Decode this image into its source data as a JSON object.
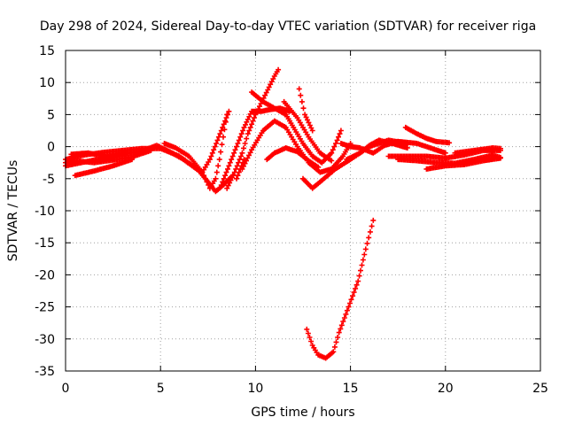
{
  "chart_data": {
    "type": "scatter",
    "title": "Day 298 of 2024, Sidereal Day-to-day VTEC variation (SDTVAR) for receiver riga",
    "xlabel": "GPS time / hours",
    "ylabel": "SDTVAR / TECUs",
    "xlim": [
      0,
      25
    ],
    "ylim": [
      -35,
      15
    ],
    "xticks": [
      0,
      5,
      10,
      15,
      20,
      25
    ],
    "yticks": [
      15,
      10,
      5,
      0,
      -5,
      -10,
      -15,
      -20,
      -25,
      -30,
      -35
    ],
    "grid": true,
    "marker": "plus",
    "color": "#ff0000",
    "series": [
      {
        "name": "track-1",
        "points": [
          [
            0.0,
            -2.0
          ],
          [
            1.0,
            -1.3
          ],
          [
            2.0,
            -0.9
          ],
          [
            3.0,
            -0.6
          ],
          [
            4.0,
            -0.3
          ],
          [
            5.0,
            -0.3
          ],
          [
            6.0,
            -1.5
          ],
          [
            7.0,
            -3.7
          ],
          [
            7.5,
            -5.5
          ],
          [
            7.9,
            -7.0
          ],
          [
            8.3,
            -6.0
          ],
          [
            8.8,
            -4.5
          ]
        ]
      },
      {
        "name": "track-2",
        "points": [
          [
            0.0,
            -3.0
          ],
          [
            1.0,
            -2.4
          ],
          [
            2.0,
            -1.8
          ],
          [
            3.0,
            -1.2
          ],
          [
            4.0,
            -0.7
          ],
          [
            4.8,
            0.2
          ],
          [
            5.5,
            -0.8
          ],
          [
            6.2,
            -2.0
          ],
          [
            6.9,
            -3.5
          ]
        ]
      },
      {
        "name": "track-3",
        "points": [
          [
            0.0,
            -2.5
          ],
          [
            0.5,
            -2.2
          ],
          [
            1.5,
            -2.5
          ],
          [
            2.5,
            -2.1
          ],
          [
            3.5,
            -1.6
          ],
          [
            4.5,
            -0.6
          ]
        ]
      },
      {
        "name": "track-4",
        "points": [
          [
            0.5,
            -4.5
          ],
          [
            1.5,
            -3.8
          ],
          [
            2.5,
            -3.0
          ],
          [
            3.5,
            -2.0
          ]
        ]
      },
      {
        "name": "track-5",
        "points": [
          [
            0.3,
            -1.2
          ],
          [
            1.2,
            -1.0
          ],
          [
            2.2,
            -1.6
          ],
          [
            3.2,
            -1.0
          ]
        ]
      },
      {
        "name": "track-6",
        "points": [
          [
            5.2,
            0.5
          ],
          [
            5.8,
            -0.2
          ],
          [
            6.5,
            -1.5
          ],
          [
            7.2,
            -4.0
          ],
          [
            7.6,
            -6.5
          ],
          [
            7.9,
            -5.0
          ],
          [
            8.1,
            -2.0
          ],
          [
            8.3,
            1.5
          ],
          [
            8.5,
            5.0
          ]
        ]
      },
      {
        "name": "track-7",
        "points": [
          [
            7.2,
            -4.0
          ],
          [
            7.6,
            -2.0
          ],
          [
            8.0,
            1.0
          ],
          [
            8.4,
            4.0
          ],
          [
            8.6,
            5.5
          ]
        ]
      },
      {
        "name": "track-8",
        "points": [
          [
            8.5,
            -6.5
          ],
          [
            8.9,
            -4.0
          ],
          [
            9.3,
            -1.0
          ],
          [
            9.6,
            2.0
          ],
          [
            10.0,
            5.0
          ],
          [
            10.5,
            8.0
          ],
          [
            11.0,
            11.0
          ],
          [
            11.2,
            12.0
          ]
        ]
      },
      {
        "name": "track-9",
        "points": [
          [
            8.2,
            -6.0
          ],
          [
            8.6,
            -3.0
          ],
          [
            9.0,
            0.0
          ],
          [
            9.4,
            3.0
          ],
          [
            9.8,
            5.5
          ],
          [
            10.3,
            5.5
          ],
          [
            10.8,
            5.8
          ],
          [
            11.3,
            6.0
          ],
          [
            11.8,
            5.5
          ]
        ]
      },
      {
        "name": "track-10",
        "points": [
          [
            9.8,
            8.5
          ],
          [
            10.4,
            7.0
          ],
          [
            11.0,
            6.0
          ],
          [
            11.6,
            5.0
          ],
          [
            12.0,
            3.0
          ],
          [
            12.5,
            0.5
          ],
          [
            13.0,
            -1.5
          ],
          [
            13.5,
            -2.5
          ],
          [
            14.0,
            -1.0
          ],
          [
            14.3,
            1.0
          ],
          [
            14.5,
            2.5
          ]
        ]
      },
      {
        "name": "track-11",
        "points": [
          [
            9.3,
            -3.5
          ],
          [
            9.8,
            -0.5
          ],
          [
            10.4,
            2.5
          ],
          [
            11.0,
            4.0
          ],
          [
            11.6,
            3.0
          ],
          [
            12.2,
            0.0
          ],
          [
            12.8,
            -2.5
          ],
          [
            13.4,
            -4.0
          ],
          [
            14.0,
            -3.5
          ],
          [
            14.6,
            -1.5
          ],
          [
            15.0,
            0.5
          ]
        ]
      },
      {
        "name": "track-12",
        "points": [
          [
            9.0,
            -5.0
          ],
          [
            9.4,
            -2.0
          ]
        ]
      },
      {
        "name": "track-13",
        "points": [
          [
            10.6,
            -2.0
          ],
          [
            11.0,
            -1.0
          ],
          [
            11.6,
            -0.2
          ],
          [
            12.2,
            -0.8
          ],
          [
            12.8,
            -2.2
          ],
          [
            13.3,
            -3.2
          ]
        ]
      },
      {
        "name": "track-14",
        "points": [
          [
            12.5,
            -5.0
          ],
          [
            13.0,
            -6.5
          ],
          [
            13.6,
            -5.0
          ],
          [
            14.2,
            -3.5
          ],
          [
            15.0,
            -2.0
          ],
          [
            16.0,
            0.0
          ],
          [
            17.0,
            1.0
          ],
          [
            18.0,
            0.5
          ]
        ]
      },
      {
        "name": "track-15",
        "points": [
          [
            11.5,
            7.0
          ],
          [
            12.2,
            4.5
          ],
          [
            12.8,
            1.5
          ],
          [
            13.4,
            -1.0
          ],
          [
            14.0,
            -2.2
          ]
        ]
      },
      {
        "name": "track-16",
        "points": [
          [
            12.3,
            9.0
          ],
          [
            12.6,
            5.0
          ],
          [
            13.0,
            2.5
          ]
        ]
      },
      {
        "name": "track-17",
        "points": [
          [
            14.5,
            0.5
          ],
          [
            15.0,
            0.0
          ],
          [
            15.5,
            -0.2
          ],
          [
            16.2,
            -1.0
          ],
          [
            16.8,
            0.2
          ],
          [
            17.5,
            0.8
          ],
          [
            18.5,
            0.5
          ],
          [
            19.5,
            -0.5
          ],
          [
            20.0,
            -1.0
          ]
        ]
      },
      {
        "name": "track-18",
        "points": [
          [
            14.8,
            -2.0
          ],
          [
            15.5,
            -1.0
          ],
          [
            16.0,
            0.2
          ],
          [
            16.5,
            1.0
          ],
          [
            17.2,
            0.5
          ],
          [
            18.0,
            -0.2
          ]
        ]
      },
      {
        "name": "track-19",
        "points": [
          [
            17.9,
            3.0
          ],
          [
            18.5,
            2.0
          ],
          [
            19.0,
            1.3
          ],
          [
            19.5,
            0.8
          ],
          [
            20.2,
            0.6
          ]
        ]
      },
      {
        "name": "track-20",
        "points": [
          [
            17.0,
            -1.5
          ],
          [
            18.0,
            -1.5
          ],
          [
            19.0,
            -1.5
          ],
          [
            20.0,
            -1.8
          ],
          [
            21.0,
            -1.3
          ],
          [
            22.0,
            -0.6
          ],
          [
            22.9,
            -0.6
          ]
        ]
      },
      {
        "name": "track-21",
        "points": [
          [
            17.5,
            -2.0
          ],
          [
            18.5,
            -2.2
          ],
          [
            19.5,
            -2.5
          ],
          [
            20.5,
            -2.6
          ],
          [
            21.5,
            -2.0
          ],
          [
            22.5,
            -1.3
          ],
          [
            22.9,
            -1.7
          ]
        ]
      },
      {
        "name": "track-22",
        "points": [
          [
            19.0,
            -3.5
          ],
          [
            20.0,
            -3.0
          ],
          [
            21.0,
            -2.8
          ],
          [
            22.0,
            -2.2
          ],
          [
            22.9,
            -1.8
          ]
        ]
      },
      {
        "name": "track-23",
        "points": [
          [
            20.5,
            -1.0
          ],
          [
            21.5,
            -0.6
          ],
          [
            22.5,
            -0.2
          ],
          [
            22.9,
            -0.3
          ]
        ]
      },
      {
        "name": "track-24",
        "points": [
          [
            12.7,
            -28.5
          ],
          [
            13.0,
            -31.0
          ],
          [
            13.3,
            -32.5
          ],
          [
            13.7,
            -33.0
          ],
          [
            14.1,
            -32.0
          ],
          [
            14.4,
            -29.0
          ],
          [
            14.9,
            -25.0
          ],
          [
            15.4,
            -21.0
          ],
          [
            15.8,
            -16.0
          ],
          [
            16.2,
            -11.5
          ]
        ]
      }
    ]
  }
}
